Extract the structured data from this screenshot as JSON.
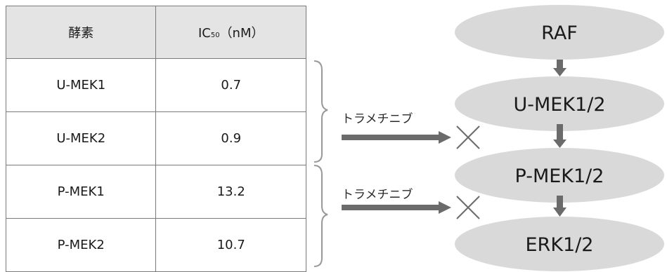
{
  "table": {
    "headers": {
      "enzyme": "酵素",
      "ic50_prefix": "IC",
      "ic50_sub": "50",
      "ic50_suffix": "（nM）"
    },
    "rows": [
      {
        "enzyme": "U-MEK1",
        "ic50": "0.7"
      },
      {
        "enzyme": "U-MEK2",
        "ic50": "0.9"
      },
      {
        "enzyme": "P-MEK1",
        "ic50": "13.2"
      },
      {
        "enzyme": "P-MEK2",
        "ic50": "10.7"
      }
    ]
  },
  "pathway": {
    "nodes": [
      "RAF",
      "U-MEK1/2",
      "P-MEK1/2",
      "ERK1/2"
    ],
    "inhibitor_labels": [
      "トラメチニブ",
      "トラメチニブ"
    ]
  },
  "colors": {
    "header_fill": "#e4e4e4",
    "node_fill": "#d9d9d9",
    "arrow": "#6b6b6b",
    "bracket": "#999999"
  }
}
